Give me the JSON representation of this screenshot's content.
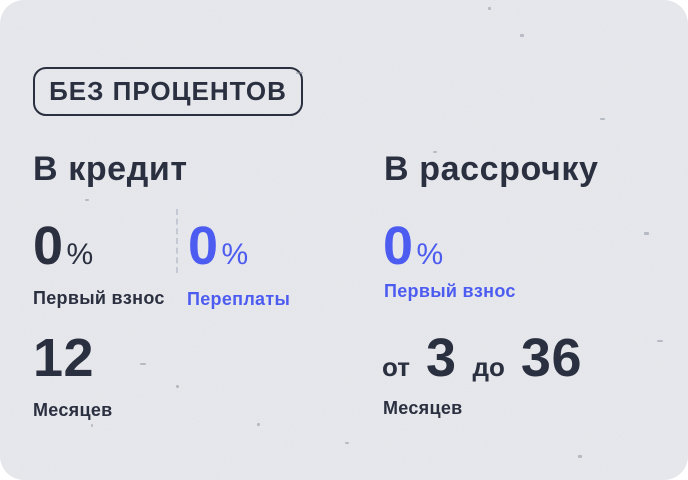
{
  "badge": {
    "label": "БЕЗ ПРОЦЕНТОВ"
  },
  "columns": {
    "credit": {
      "title": "В кредит",
      "down_payment": {
        "value": "0",
        "unit": "%",
        "label": "Первый взнос"
      },
      "overpayment": {
        "value": "0",
        "unit": "%",
        "label": "Переплаты"
      },
      "term": {
        "value": "12",
        "label": "Месяцев"
      }
    },
    "installment": {
      "title": "В рассрочку",
      "down_payment": {
        "value": "0",
        "unit": "%",
        "label": "Первый взнос"
      },
      "term": {
        "from_word": "от",
        "from_value": "3",
        "to_word": "до",
        "to_value": "36",
        "label": "Месяцев"
      }
    }
  },
  "colors": {
    "accent_blue": "#4d5cf0",
    "text_dark": "#2b3040",
    "background": "#e9eaee",
    "divider": "#c5c9d3"
  }
}
